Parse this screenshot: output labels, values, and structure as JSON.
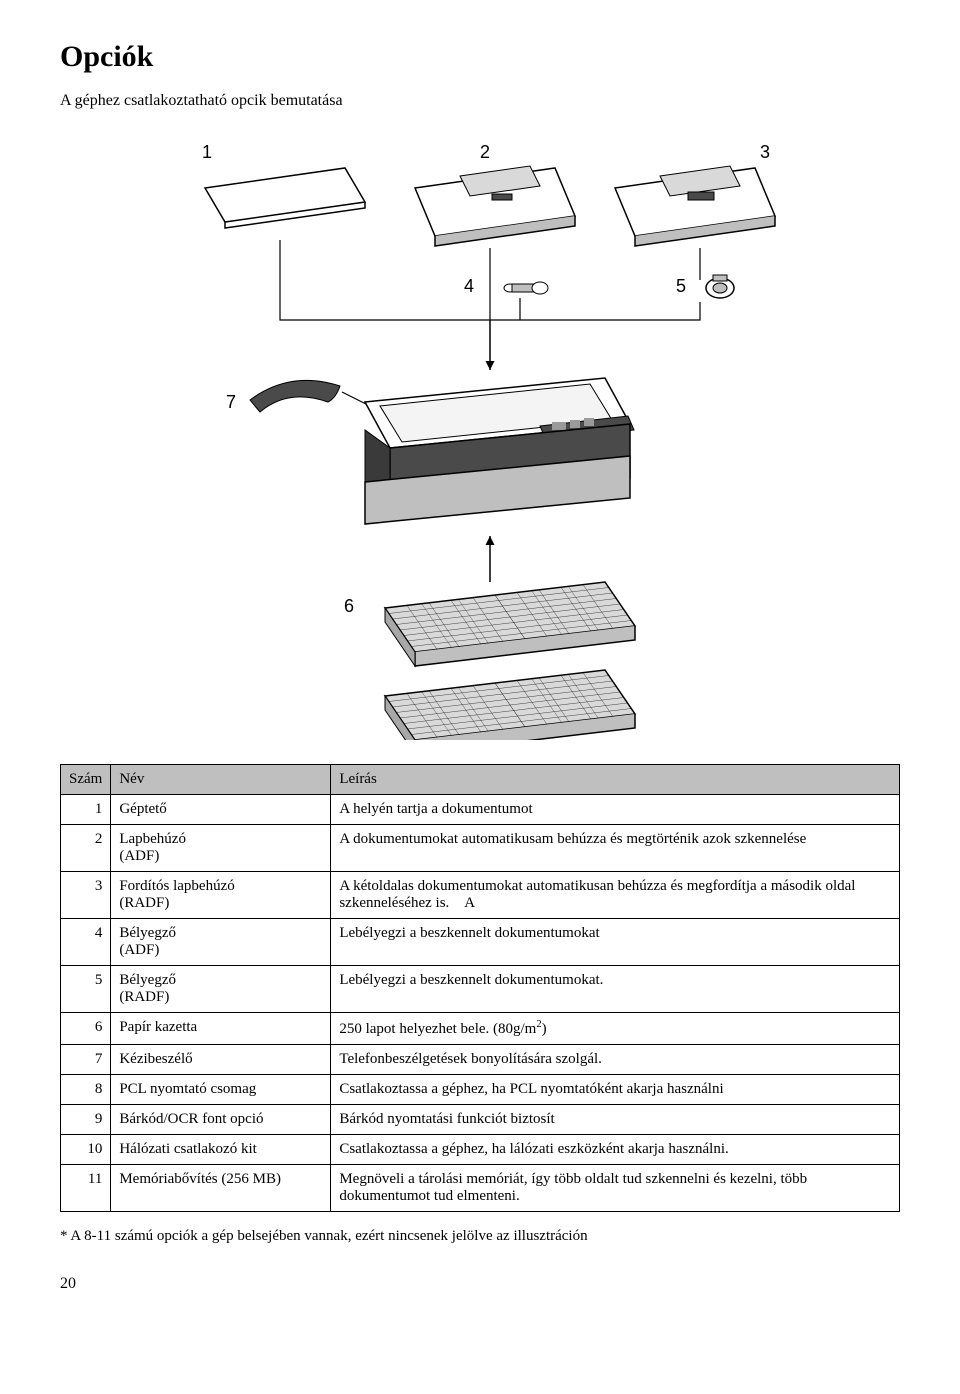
{
  "title": "Opciók",
  "subtitle": "A géphez csatlakoztatható opcik bemutatása",
  "diagram": {
    "labels": [
      "1",
      "2",
      "3",
      "4",
      "5",
      "6",
      "7"
    ],
    "stroke": "#000000",
    "light_fill": "#ffffff",
    "mid_fill": "#bfbfbf",
    "dark_fill": "#4a4a4a",
    "tray_fill": "#d9d9d9"
  },
  "table": {
    "header_bg": "#bfbfbf",
    "border_color": "#000000",
    "columns": [
      "Szám",
      "Név",
      "Leírás"
    ],
    "rows": [
      {
        "num": "1",
        "name": "Géptető",
        "desc": "A helyén tartja a dokumentumot"
      },
      {
        "num": "2",
        "name": "Lapbehúzó\n(ADF)",
        "desc": "A dokumentumokat automatikusam behúzza és megtörténik azok szkennelése"
      },
      {
        "num": "3",
        "name": "Fordítós lapbehúzó\n(RADF)",
        "desc": "A kétoldalas dokumentumokat automatikusan behúzza és megfordítja a második oldal szkenneléséhez is. A"
      },
      {
        "num": "4",
        "name": "Bélyegző\n(ADF)",
        "desc": "Lebélyegzi a beszkennelt dokumentumokat"
      },
      {
        "num": "5",
        "name": "Bélyegző\n(RADF)",
        "desc": "Lebélyegzi a beszkennelt dokumentumokat."
      },
      {
        "num": "6",
        "name": "Papír kazetta",
        "desc_html": "250 lapot helyezhet bele. (80g/m<sup>2</sup>)"
      },
      {
        "num": "7",
        "name": "Kézibeszélő",
        "desc": "Telefonbeszélgetések bonyolítására szolgál."
      },
      {
        "num": "8",
        "name": "PCL nyomtató csomag",
        "desc": "Csatlakoztassa a géphez, ha PCL nyomtatóként akarja használni"
      },
      {
        "num": "9",
        "name": "Bárkód/OCR font opció",
        "desc": "Bárkód nyomtatási funkciót biztosít"
      },
      {
        "num": "10",
        "name": "Hálózati csatlakozó kit",
        "desc": "Csatlakoztassa a géphez, ha lálózati eszközként akarja használni."
      },
      {
        "num": "11",
        "name": "Memóriabővítés (256 MB)",
        "desc": "Megnöveli a tárolási memóriát, így több oldalt tud szkennelni és kezelni, több dokumentumot tud elmenteni."
      }
    ]
  },
  "footnote": "* A 8-11 számú opciók a gép belsejében vannak, ezért nincsenek jelölve az illusztráción",
  "page_number": "20"
}
